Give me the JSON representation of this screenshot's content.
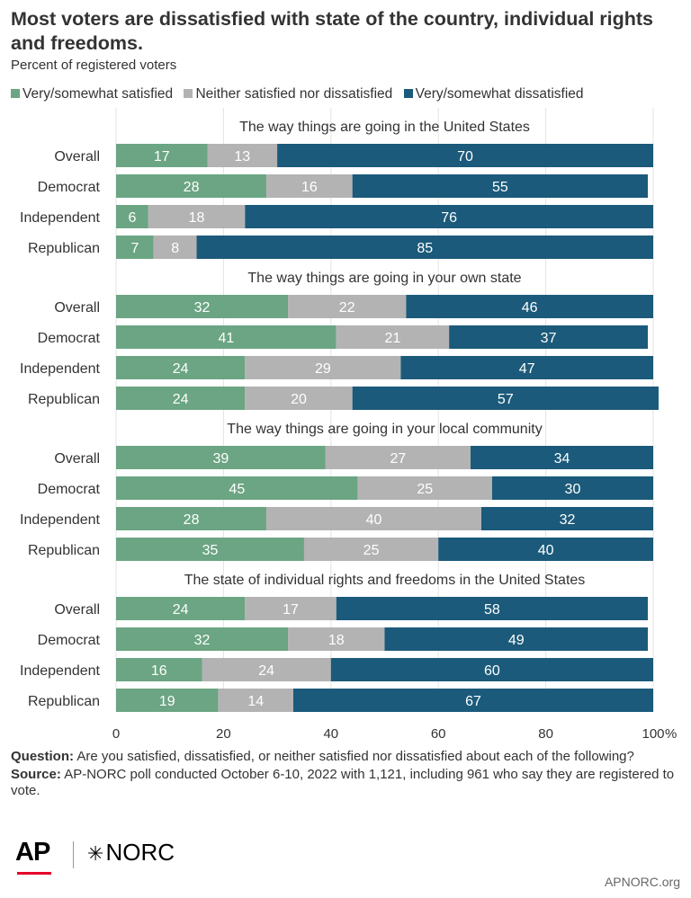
{
  "title": "Most voters are dissatisfied with state of the country, individual rights and freedoms.",
  "subtitle": "Percent of registered voters",
  "legend": [
    {
      "label": "Very/somewhat satisfied",
      "color": "#6ba583"
    },
    {
      "label": "Neither satisfied nor dissatisfied",
      "color": "#b3b3b3"
    },
    {
      "label": "Very/somewhat dissatisfied",
      "color": "#1b5a7a"
    }
  ],
  "chart_data": {
    "type": "bar",
    "orientation": "horizontal",
    "stacked": true,
    "xlim": [
      0,
      100
    ],
    "xticks": [
      "0",
      "20",
      "40",
      "60",
      "80",
      "100"
    ],
    "x_unit": "%",
    "series_names": [
      "Very/somewhat satisfied",
      "Neither satisfied nor dissatisfied",
      "Very/somewhat dissatisfied"
    ],
    "colors": [
      "#6ba583",
      "#b3b3b3",
      "#1b5a7a"
    ],
    "groups": [
      {
        "title": "The way things are going in the United States",
        "rows": [
          {
            "label": "Overall",
            "values": [
              17,
              13,
              70
            ]
          },
          {
            "label": "Democrat",
            "values": [
              28,
              16,
              55
            ]
          },
          {
            "label": "Independent",
            "values": [
              6,
              18,
              76
            ]
          },
          {
            "label": "Republican",
            "values": [
              7,
              8,
              85
            ]
          }
        ]
      },
      {
        "title": "The way things are going in your own state",
        "rows": [
          {
            "label": "Overall",
            "values": [
              32,
              22,
              46
            ]
          },
          {
            "label": "Democrat",
            "values": [
              41,
              21,
              37
            ]
          },
          {
            "label": "Independent",
            "values": [
              24,
              29,
              47
            ]
          },
          {
            "label": "Republican",
            "values": [
              24,
              20,
              57
            ]
          }
        ]
      },
      {
        "title": "The way things are going in your local community",
        "rows": [
          {
            "label": "Overall",
            "values": [
              39,
              27,
              34
            ]
          },
          {
            "label": "Democrat",
            "values": [
              45,
              25,
              30
            ]
          },
          {
            "label": "Independent",
            "values": [
              28,
              40,
              32
            ]
          },
          {
            "label": "Republican",
            "values": [
              35,
              25,
              40
            ]
          }
        ]
      },
      {
        "title": "The state of individual rights and freedoms in the United States",
        "rows": [
          {
            "label": "Overall",
            "values": [
              24,
              17,
              58
            ]
          },
          {
            "label": "Democrat",
            "values": [
              32,
              18,
              49
            ]
          },
          {
            "label": "Independent",
            "values": [
              16,
              24,
              60
            ]
          },
          {
            "label": "Republican",
            "values": [
              19,
              14,
              67
            ]
          }
        ]
      }
    ]
  },
  "footnote": {
    "question_label": "Question:",
    "question_text": "Are you satisfied, dissatisfied, or neither satisfied nor dissatisfied about each of the following?",
    "source_label": "Source:",
    "source_text": "AP-NORC poll conducted October 6-10, 2022 with 1,121, including 961 who say they are registered to vote."
  },
  "logos": {
    "ap": "AP",
    "norc": "NORC",
    "norc_icon": "asterisk-star-icon"
  },
  "site": "APNORC.org"
}
